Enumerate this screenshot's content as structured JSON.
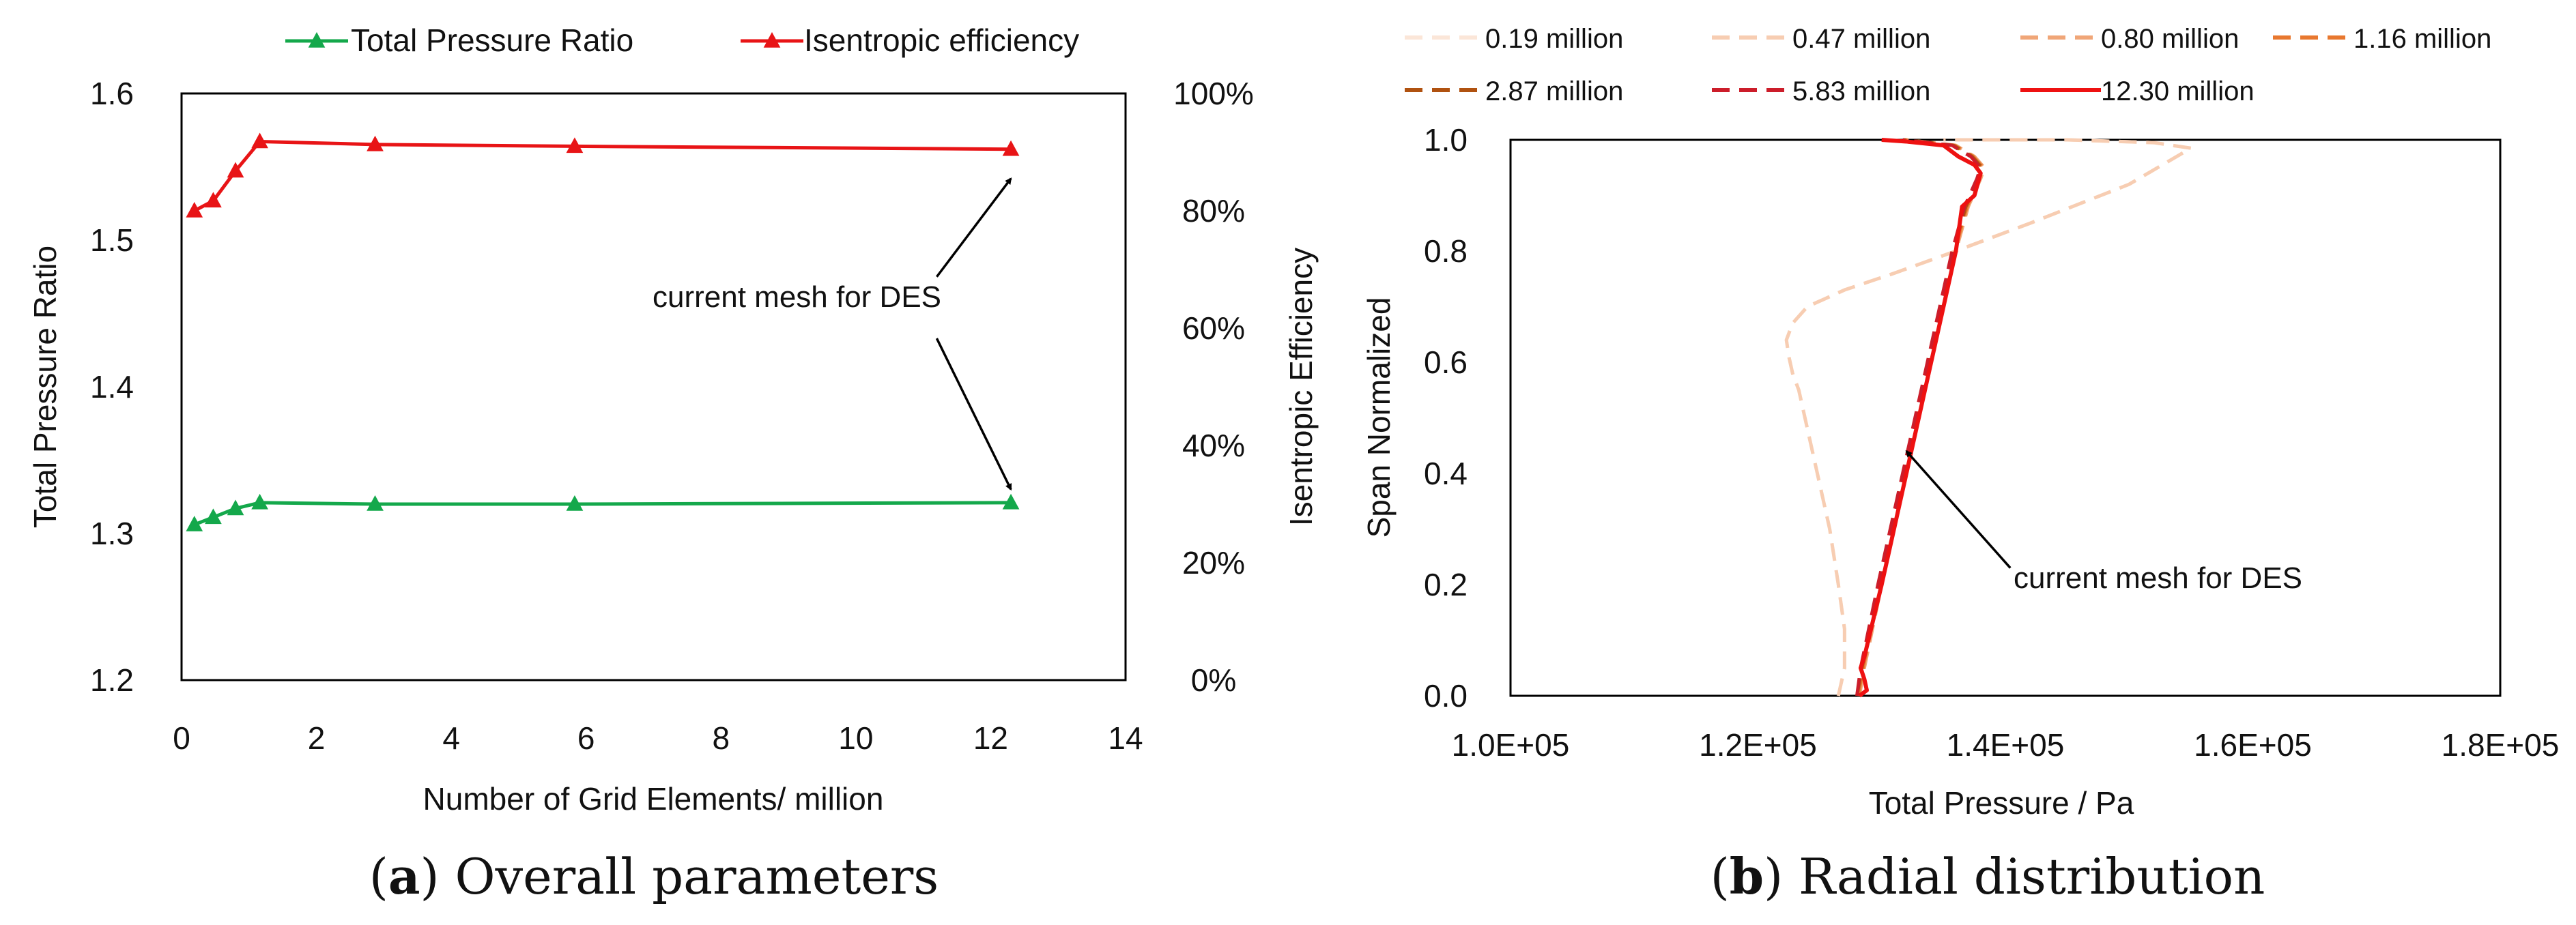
{
  "chart_data": [
    {
      "id": "a",
      "type": "line",
      "xlabel": "Number of Grid Elements/ million",
      "ylabel": "Total Pressure Ratio",
      "y2label": "Isentropic Efficiency",
      "xlim": [
        0,
        14
      ],
      "ylim": [
        1.2,
        1.6
      ],
      "y2lim": [
        0,
        1
      ],
      "x_ticks": [
        "0",
        "2",
        "4",
        "6",
        "8",
        "10",
        "12",
        "14"
      ],
      "y_ticks": [
        "1.2",
        "1.3",
        "1.4",
        "1.5",
        "1.6"
      ],
      "y2_ticks": [
        "0%",
        "20%",
        "40%",
        "60%",
        "80%",
        "100%"
      ],
      "legend_position": "top",
      "series": [
        {
          "name": "Total Pressure Ratio",
          "axis": "left",
          "color": "#14a84b",
          "marker": "triangle",
          "x": [
            0.19,
            0.47,
            0.8,
            1.16,
            2.87,
            5.83,
            12.3
          ],
          "y": [
            1.306,
            1.311,
            1.317,
            1.321,
            1.32,
            1.32,
            1.321
          ]
        },
        {
          "name": "Isentropic efficiency",
          "axis": "right",
          "color": "#e81416",
          "marker": "triangle",
          "x": [
            0.19,
            0.47,
            0.8,
            1.16,
            2.87,
            5.83,
            12.3
          ],
          "y": [
            0.8,
            0.817,
            0.868,
            0.918,
            0.913,
            0.91,
            0.905
          ]
        }
      ],
      "annotation": {
        "text": "current mesh for DES",
        "arrows_to": [
          {
            "x": 12.3,
            "y": 1.542
          },
          {
            "x": 12.3,
            "y": 1.33
          }
        ],
        "arrows_from": [
          {
            "x": 11.2,
            "y": 1.475
          },
          {
            "x": 11.2,
            "y": 1.433
          }
        ],
        "text_at": {
          "x": 8.45,
          "y": 1.46
        }
      },
      "caption_letter": "a",
      "caption_text": " Overall parameters"
    },
    {
      "id": "b",
      "type": "line",
      "xlabel": "Total Pressure / Pa",
      "ylabel": "Span Normalized",
      "xlim": [
        100000,
        180000
      ],
      "ylim": [
        0,
        1
      ],
      "x_ticks": [
        "1.0E+05",
        "1.2E+05",
        "1.4E+05",
        "1.6E+05",
        "1.8E+05"
      ],
      "y_ticks": [
        "0.0",
        "0.2",
        "0.4",
        "0.6",
        "0.8",
        "1.0"
      ],
      "legend_position": "top",
      "series": [
        {
          "name": "0.19 million",
          "color": "#fbe6d8",
          "dash": true,
          "x": [
            126500,
            127000,
            127000,
            126500,
            125800,
            124800,
            124000,
            123300,
            122800,
            122500,
            122300,
            122800,
            124000,
            127000,
            131000,
            136000,
            142000,
            150000,
            155000,
            152000,
            145000,
            139000,
            135000
          ],
          "y": [
            0.0,
            0.05,
            0.12,
            0.2,
            0.3,
            0.4,
            0.48,
            0.55,
            0.58,
            0.61,
            0.64,
            0.67,
            0.7,
            0.73,
            0.76,
            0.8,
            0.85,
            0.92,
            0.985,
            0.995,
            1.0,
            1.0,
            1.0
          ]
        },
        {
          "name": "0.47 million",
          "color": "#f7cdb2",
          "dash": true,
          "x": [
            126500,
            127000,
            127000,
            126500,
            125800,
            124800,
            124000,
            123300,
            122800,
            122500,
            122300,
            122800,
            124000,
            127000,
            131000,
            136000,
            142000,
            150000,
            155000,
            152000,
            145000,
            139000,
            135000
          ],
          "y": [
            0.0,
            0.05,
            0.12,
            0.2,
            0.3,
            0.4,
            0.48,
            0.55,
            0.58,
            0.61,
            0.64,
            0.67,
            0.7,
            0.73,
            0.76,
            0.8,
            0.85,
            0.92,
            0.985,
            0.995,
            1.0,
            1.0,
            1.0
          ]
        },
        {
          "name": "0.80 million",
          "color": "#f0a678",
          "dash": true,
          "x": [
            128200,
            128600,
            130000,
            131500,
            133000,
            134500,
            136000,
            137000,
            138000,
            138300,
            137500,
            136000,
            134000,
            132000
          ],
          "y": [
            0.0,
            0.05,
            0.2,
            0.35,
            0.5,
            0.65,
            0.8,
            0.88,
            0.93,
            0.95,
            0.97,
            0.99,
            0.995,
            1.0
          ]
        },
        {
          "name": "1.16 million",
          "color": "#e8782f",
          "dash": true,
          "x": [
            128100,
            128500,
            129900,
            131400,
            132900,
            134400,
            135900,
            136900,
            137900,
            138200,
            137400,
            135900,
            133900,
            131900
          ],
          "y": [
            0.0,
            0.05,
            0.2,
            0.35,
            0.5,
            0.65,
            0.8,
            0.88,
            0.93,
            0.95,
            0.97,
            0.99,
            0.995,
            1.0
          ]
        },
        {
          "name": "2.87 million",
          "color": "#b05210",
          "dash": true,
          "x": [
            128000,
            128400,
            129800,
            131300,
            132800,
            134300,
            135800,
            136800,
            137800,
            138100,
            137300,
            135800,
            133800,
            131800
          ],
          "y": [
            0.0,
            0.05,
            0.2,
            0.35,
            0.5,
            0.65,
            0.8,
            0.88,
            0.93,
            0.95,
            0.97,
            0.99,
            0.995,
            1.0
          ]
        },
        {
          "name": "5.83 million",
          "color": "#cc1d2a",
          "dash": true,
          "x": [
            128000,
            128300,
            129700,
            131200,
            132700,
            134200,
            135700,
            136700,
            137700,
            138000,
            137200,
            135700,
            133700,
            131700
          ],
          "y": [
            0.0,
            0.05,
            0.2,
            0.35,
            0.5,
            0.65,
            0.8,
            0.88,
            0.93,
            0.95,
            0.97,
            0.99,
            0.995,
            1.0
          ]
        },
        {
          "name": "12.30 million",
          "color": "#ee1111",
          "dash": false,
          "x": [
            128200,
            128800,
            128600,
            128300,
            128600,
            130000,
            131500,
            133000,
            134500,
            136000,
            136500,
            137500,
            138000,
            137500,
            136200,
            135000,
            132000,
            130000
          ],
          "y": [
            0.0,
            0.01,
            0.03,
            0.05,
            0.07,
            0.2,
            0.35,
            0.5,
            0.65,
            0.8,
            0.88,
            0.9,
            0.94,
            0.955,
            0.97,
            0.99,
            0.997,
            1.0
          ]
        }
      ],
      "annotation": {
        "text": "current mesh for DES",
        "arrow_from": {
          "x": 140400,
          "y": 0.23
        },
        "arrow_to": {
          "x": 132000,
          "y": 0.44
        },
        "text_at": {
          "x": 134000,
          "y": 0.2
        }
      },
      "caption_letter": "b",
      "caption_text": " Radial distribution"
    }
  ]
}
